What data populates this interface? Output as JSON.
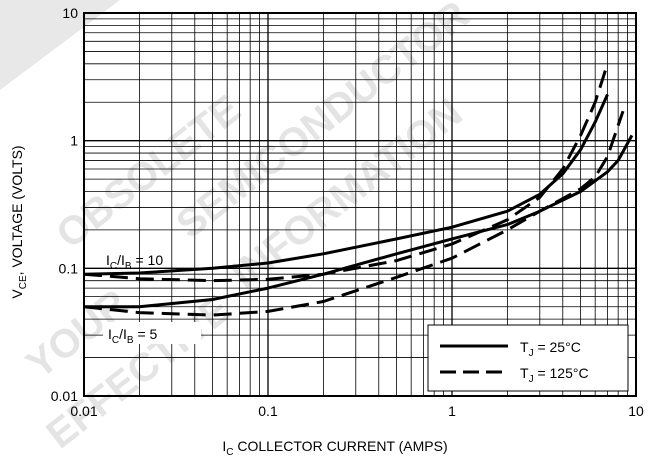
{
  "watermark": {
    "line1": "OBSOLETE",
    "line2": "SEMICONDUCTOR",
    "line3": "INFORMATION",
    "line4": "YOUR",
    "line5": "EFFECTIVE"
  },
  "chart_data": {
    "type": "line",
    "title": "",
    "xlabel": "I_C COLLECTOR CURRENT (AMPS)",
    "ylabel": "V_CE, VOLTAGE (VOLTS)",
    "xscale": "log",
    "yscale": "log",
    "xlim": [
      0.01,
      10
    ],
    "ylim": [
      0.01,
      10
    ],
    "grid": true,
    "x_ticks": [
      "0.01",
      "0.1",
      "1",
      "10"
    ],
    "y_ticks": [
      "0.01",
      "0.1",
      "1",
      "10"
    ],
    "legend": {
      "placement": "bottom-right",
      "entries": [
        {
          "label": "T_J = 25°C",
          "style": "solid"
        },
        {
          "label": "T_J = 125°C",
          "style": "dashed"
        }
      ]
    },
    "annotations": [
      "I_C/I_B = 10",
      "I_C/I_B = 5"
    ],
    "series": [
      {
        "group": "I_C/I_B = 10",
        "style": "solid",
        "x": [
          0.01,
          0.02,
          0.05,
          0.1,
          0.2,
          0.5,
          1,
          2,
          3,
          4,
          5,
          6,
          7
        ],
        "y": [
          0.09,
          0.092,
          0.1,
          0.11,
          0.13,
          0.17,
          0.21,
          0.28,
          0.38,
          0.55,
          0.85,
          1.4,
          2.3
        ]
      },
      {
        "group": "I_C/I_B = 10",
        "style": "dashed",
        "x": [
          0.01,
          0.02,
          0.05,
          0.1,
          0.2,
          0.5,
          1,
          2,
          3,
          4,
          5,
          6,
          7
        ],
        "y": [
          0.09,
          0.083,
          0.08,
          0.082,
          0.09,
          0.115,
          0.155,
          0.24,
          0.36,
          0.6,
          1.1,
          2.0,
          4.0
        ]
      },
      {
        "group": "I_C/I_B = 5",
        "style": "solid",
        "x": [
          0.01,
          0.02,
          0.05,
          0.1,
          0.2,
          0.5,
          1,
          2,
          3,
          5,
          7,
          8,
          9.5
        ],
        "y": [
          0.05,
          0.05,
          0.057,
          0.07,
          0.09,
          0.13,
          0.17,
          0.22,
          0.28,
          0.4,
          0.57,
          0.7,
          1.1
        ]
      },
      {
        "group": "I_C/I_B = 5",
        "style": "dashed",
        "x": [
          0.01,
          0.02,
          0.05,
          0.1,
          0.2,
          0.5,
          1,
          2,
          3,
          5,
          6,
          7,
          8.5
        ],
        "y": [
          0.05,
          0.045,
          0.043,
          0.046,
          0.055,
          0.085,
          0.12,
          0.2,
          0.28,
          0.42,
          0.52,
          0.75,
          1.7
        ]
      }
    ]
  }
}
